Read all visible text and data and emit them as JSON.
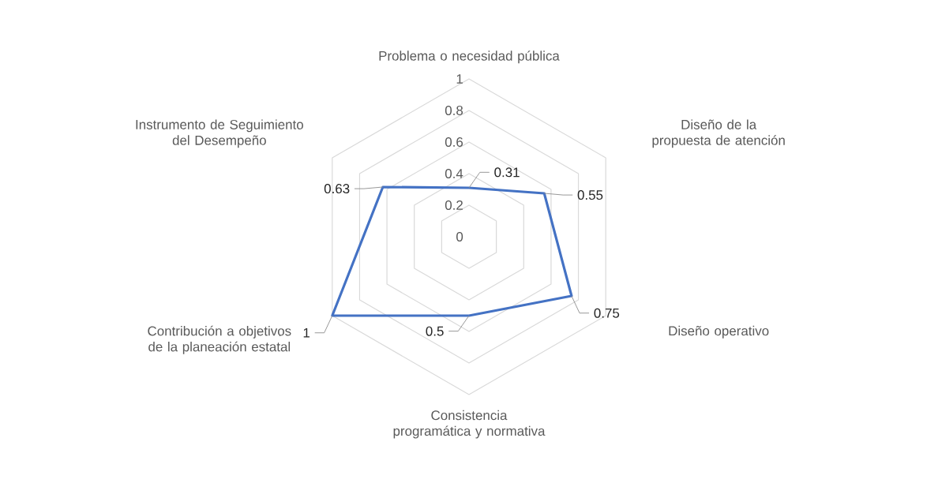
{
  "chart_data": {
    "type": "radar",
    "categories": [
      "Problema o necesidad pública",
      "Diseño de la propuesta de atención",
      "Diseño operativo",
      "Consistencia programática y normativa",
      "Contribución a objetivos de la planeación estatal",
      "Instrumento de Seguimiento del Desempeño"
    ],
    "series": [
      {
        "color": "#4472c4",
        "values": [
          0.31,
          0.55,
          0.75,
          0.5,
          1,
          0.63
        ]
      }
    ],
    "ylim": [
      0,
      1
    ],
    "yticks": [
      0,
      0.2,
      0.4,
      0.6,
      0.8,
      1
    ],
    "grid": true,
    "data_labels": true
  }
}
